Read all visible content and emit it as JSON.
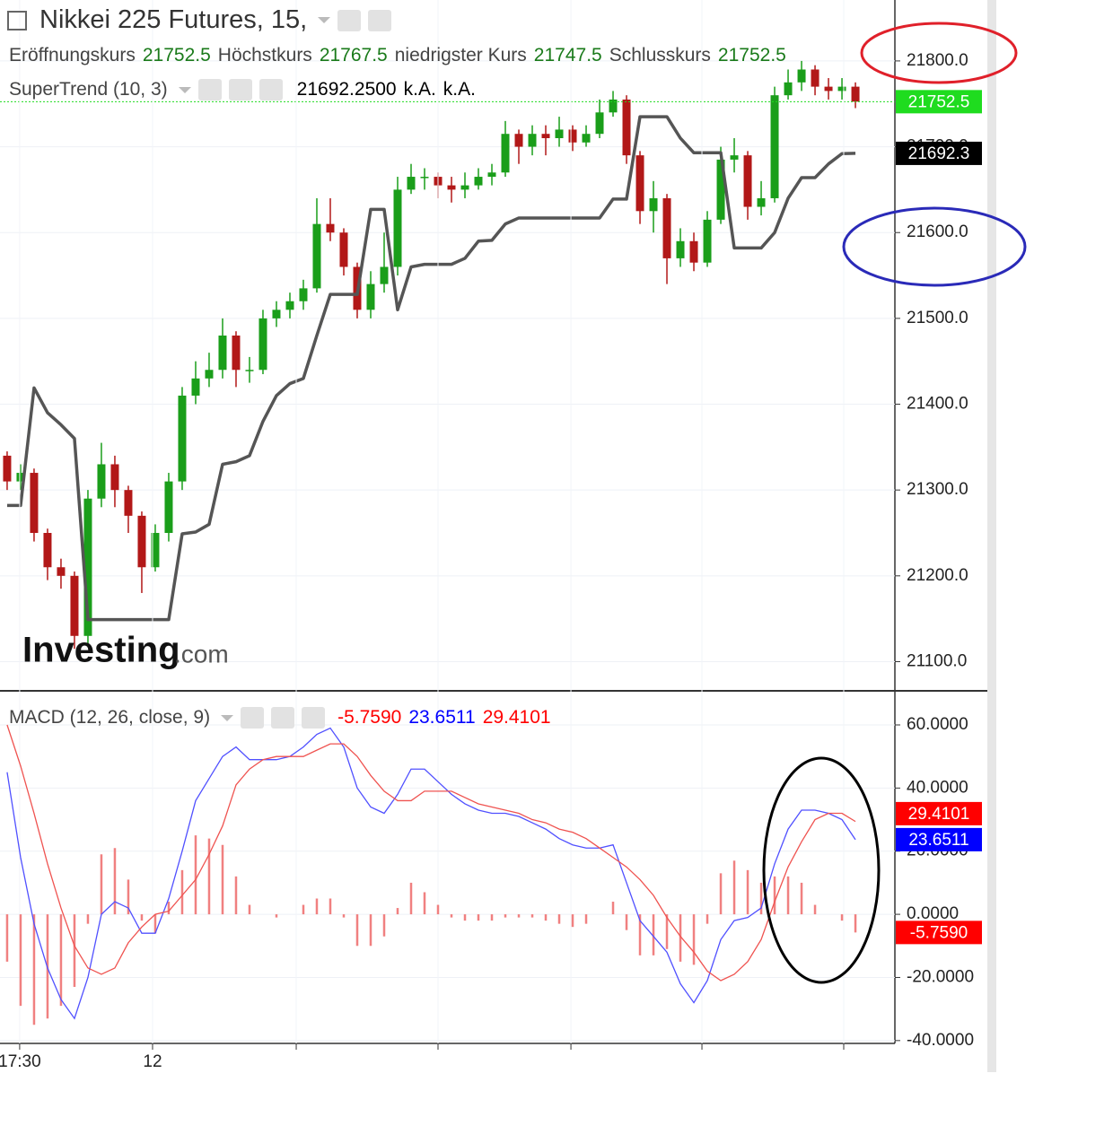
{
  "chart_data": [
    {
      "type": "candlestick",
      "title": "Nikkei 225 Futures, 15,",
      "ohlc_legend": [
        {
          "name": "Eröffnungskurs",
          "value": 21752.5
        },
        {
          "name": "Höchstkurs",
          "value": 21767.5
        },
        {
          "name": "niedrigster Kurs",
          "value": 21747.5
        },
        {
          "name": "Schlusskurs",
          "value": 21752.5
        }
      ],
      "indicator_values": [
        {
          "value": 21692.25,
          "label": "21692.2500"
        },
        "k.A.",
        "k.A."
      ],
      "up_color": "#1a9e1a",
      "down_color": "#b21818",
      "open": [
        21340,
        21310,
        21320,
        21250,
        21210,
        21200,
        21130,
        21290,
        21330,
        21300,
        21270,
        21210,
        21250,
        21310,
        21410,
        21430,
        21440,
        21480,
        21440,
        21440,
        21500,
        21510,
        21520,
        21535,
        21610,
        21600,
        21560,
        21510,
        21540,
        21560,
        21650,
        21665,
        21665,
        21655,
        21650,
        21655,
        21665,
        21670,
        21715,
        21700,
        21715,
        21710,
        21720,
        21705,
        21715,
        21740,
        21755,
        21690,
        21625,
        21640,
        21570,
        21590,
        21565,
        21615,
        21685,
        21690,
        21630,
        21640,
        21760,
        21775,
        21790,
        21770,
        21765,
        21770
      ],
      "high": [
        21345,
        21330,
        21325,
        21255,
        21220,
        21205,
        21300,
        21355,
        21340,
        21305,
        21275,
        21260,
        21320,
        21420,
        21450,
        21460,
        21500,
        21485,
        21455,
        21510,
        21520,
        21530,
        21545,
        21640,
        21640,
        21605,
        21565,
        21555,
        21600,
        21665,
        21680,
        21675,
        21670,
        21665,
        21670,
        21675,
        21680,
        21730,
        21720,
        21725,
        21725,
        21735,
        21725,
        21725,
        21755,
        21765,
        21760,
        21695,
        21660,
        21645,
        21605,
        21600,
        21625,
        21700,
        21710,
        21695,
        21660,
        21770,
        21790,
        21800,
        21795,
        21780,
        21780,
        21775
      ],
      "low": [
        21300,
        21300,
        21240,
        21195,
        21185,
        21115,
        21120,
        21280,
        21280,
        21250,
        21180,
        21205,
        21240,
        21300,
        21400,
        21420,
        21430,
        21420,
        21425,
        21435,
        21490,
        21500,
        21510,
        21530,
        21590,
        21550,
        21500,
        21500,
        21530,
        21550,
        21645,
        21650,
        21640,
        21635,
        21640,
        21650,
        21655,
        21665,
        21680,
        21690,
        21690,
        21700,
        21695,
        21700,
        21710,
        21735,
        21680,
        21610,
        21600,
        21540,
        21560,
        21555,
        21560,
        21610,
        21670,
        21615,
        21620,
        21635,
        21755,
        21765,
        21760,
        21755,
        21755,
        21745
      ],
      "close": [
        21310,
        21320,
        21250,
        21210,
        21200,
        21130,
        21290,
        21330,
        21300,
        21270,
        21210,
        21250,
        21310,
        21410,
        21430,
        21440,
        21480,
        21440,
        21440,
        21500,
        21510,
        21520,
        21535,
        21610,
        21600,
        21560,
        21510,
        21540,
        21560,
        21650,
        21665,
        21665,
        21655,
        21650,
        21655,
        21665,
        21670,
        21715,
        21700,
        21715,
        21710,
        21720,
        21705,
        21715,
        21740,
        21755,
        21690,
        21625,
        21640,
        21570,
        21590,
        21565,
        21615,
        21685,
        21690,
        21630,
        21640,
        21760,
        21775,
        21790,
        21770,
        21765,
        21770,
        21752.5
      ],
      "series": [
        {
          "name": "SuperTrend (10, 3)",
          "color": "#555555",
          "values": [
            21282,
            21282,
            21419,
            21390,
            21376,
            21360,
            21149,
            21149,
            21149,
            21149,
            21149,
            21149,
            21149,
            21249,
            21251,
            21260,
            21330,
            21333,
            21340,
            21380,
            21410,
            21424,
            21430,
            21480,
            21528,
            21528,
            21528,
            21627,
            21627,
            21510,
            21560,
            21563,
            21563,
            21563,
            21570,
            21590,
            21591,
            21610,
            21617,
            21617,
            21617,
            21617,
            21617,
            21617,
            21617,
            21639,
            21639,
            21735,
            21735,
            21735,
            21710,
            21693,
            21693,
            21693,
            21582,
            21582,
            21582,
            21600,
            21640,
            21664,
            21664,
            21680,
            21692,
            21692.3
          ]
        }
      ],
      "last_price": 21752.5,
      "last_price_color": "#1fdc1f",
      "indicator_last": 21692.3,
      "indicator_last_color": "#000000",
      "xlim": [
        -0.53,
        65.93
      ],
      "ylim": [
        21066,
        21871
      ],
      "yticks": [
        {
          "value": 21100,
          "label": "21100.0"
        },
        {
          "value": 21200,
          "label": "21200.0"
        },
        {
          "value": 21300,
          "label": "21300.0"
        },
        {
          "value": 21400,
          "label": "21400.0"
        },
        {
          "value": 21500,
          "label": "21500.0"
        },
        {
          "value": 21600,
          "label": "21600.0"
        },
        {
          "value": 21700,
          "label": "21700.0"
        },
        {
          "value": 21800,
          "label": "21800.0"
        }
      ],
      "watermark": [
        "Investing",
        ".com"
      ]
    },
    {
      "type": "macd",
      "title": "MACD (12, 26, close, 9)",
      "series": [
        {
          "type": "bar",
          "color": "#f08080",
          "label_color": "#ff0000",
          "last": {
            "value": -5.759,
            "label": "-5.7590"
          },
          "values": [
            -15,
            -29,
            -35,
            -33,
            -29,
            -23,
            -3,
            19,
            21,
            11,
            -2,
            -6,
            4,
            14,
            25,
            24,
            22,
            12,
            3,
            0,
            -1,
            0,
            3,
            5,
            5,
            -1,
            -10,
            -10,
            -7,
            2,
            10,
            7,
            3,
            -1,
            -2,
            -2,
            -2,
            -1,
            -1,
            -1,
            -2,
            -3,
            -4,
            -3,
            0,
            4,
            -5,
            -13,
            -13,
            -11,
            -15,
            -16,
            -3,
            13,
            17,
            14,
            10,
            12,
            12,
            10,
            3,
            0,
            -2,
            -5.759
          ]
        },
        {
          "type": "line",
          "color": "#5050ff",
          "label_color": "#0000ff",
          "last": 23.6511,
          "values": [
            45,
            18,
            -3,
            -17,
            -27,
            -33,
            -20,
            0,
            4,
            2,
            -6,
            -6,
            5,
            20,
            36,
            43,
            50,
            53,
            49,
            49,
            49,
            50,
            53,
            57,
            59,
            53,
            40,
            34,
            32,
            38,
            46,
            46,
            42,
            38,
            35,
            33,
            32,
            32,
            31,
            29,
            27,
            24,
            22,
            21,
            21,
            22,
            10,
            -2,
            -7,
            -12,
            -22,
            -28,
            -21,
            -8,
            -2,
            -1,
            2,
            16,
            27,
            33,
            33,
            32,
            30,
            23.6511
          ]
        },
        {
          "type": "line",
          "color": "#ef5350",
          "label_color": "#ff0000",
          "last": 29.4101,
          "values": [
            60,
            47,
            32,
            16,
            2,
            -10,
            -17,
            -19,
            -17,
            -9,
            -4,
            0,
            1,
            6,
            11,
            19,
            28,
            41,
            46,
            49,
            50,
            50,
            50,
            52,
            54,
            54,
            50,
            44,
            39,
            36,
            36,
            39,
            39,
            39,
            37,
            35,
            34,
            33,
            32,
            30,
            29,
            27,
            26,
            24,
            21,
            18,
            15,
            11,
            6,
            -1,
            -7,
            -12,
            -18,
            -21,
            -19,
            -15,
            -8,
            4,
            15,
            23,
            30,
            32,
            32,
            29.4101
          ]
        }
      ],
      "xlim": [
        -0.53,
        65.93
      ],
      "ylim": [
        -40.9,
        70.8
      ],
      "yticks": [
        {
          "value": 60,
          "label": "60.0000"
        },
        {
          "value": 40,
          "label": "40.0000"
        },
        {
          "value": 20,
          "label": "20.0000"
        },
        {
          "value": 0,
          "label": "0.0000"
        },
        {
          "value": -20,
          "label": "-20.0000"
        },
        {
          "value": -40,
          "label": "-40.0000"
        }
      ],
      "xticks": [
        {
          "value": 0.93,
          "label": "17:30"
        },
        {
          "value": 10.8,
          "label": "12"
        },
        {
          "value": 21.47,
          "label": null
        },
        {
          "value": 32,
          "label": null
        },
        {
          "value": 41.87,
          "label": null
        },
        {
          "value": 51.6,
          "label": null
        },
        {
          "value": 62.13,
          "label": null
        }
      ]
    }
  ]
}
